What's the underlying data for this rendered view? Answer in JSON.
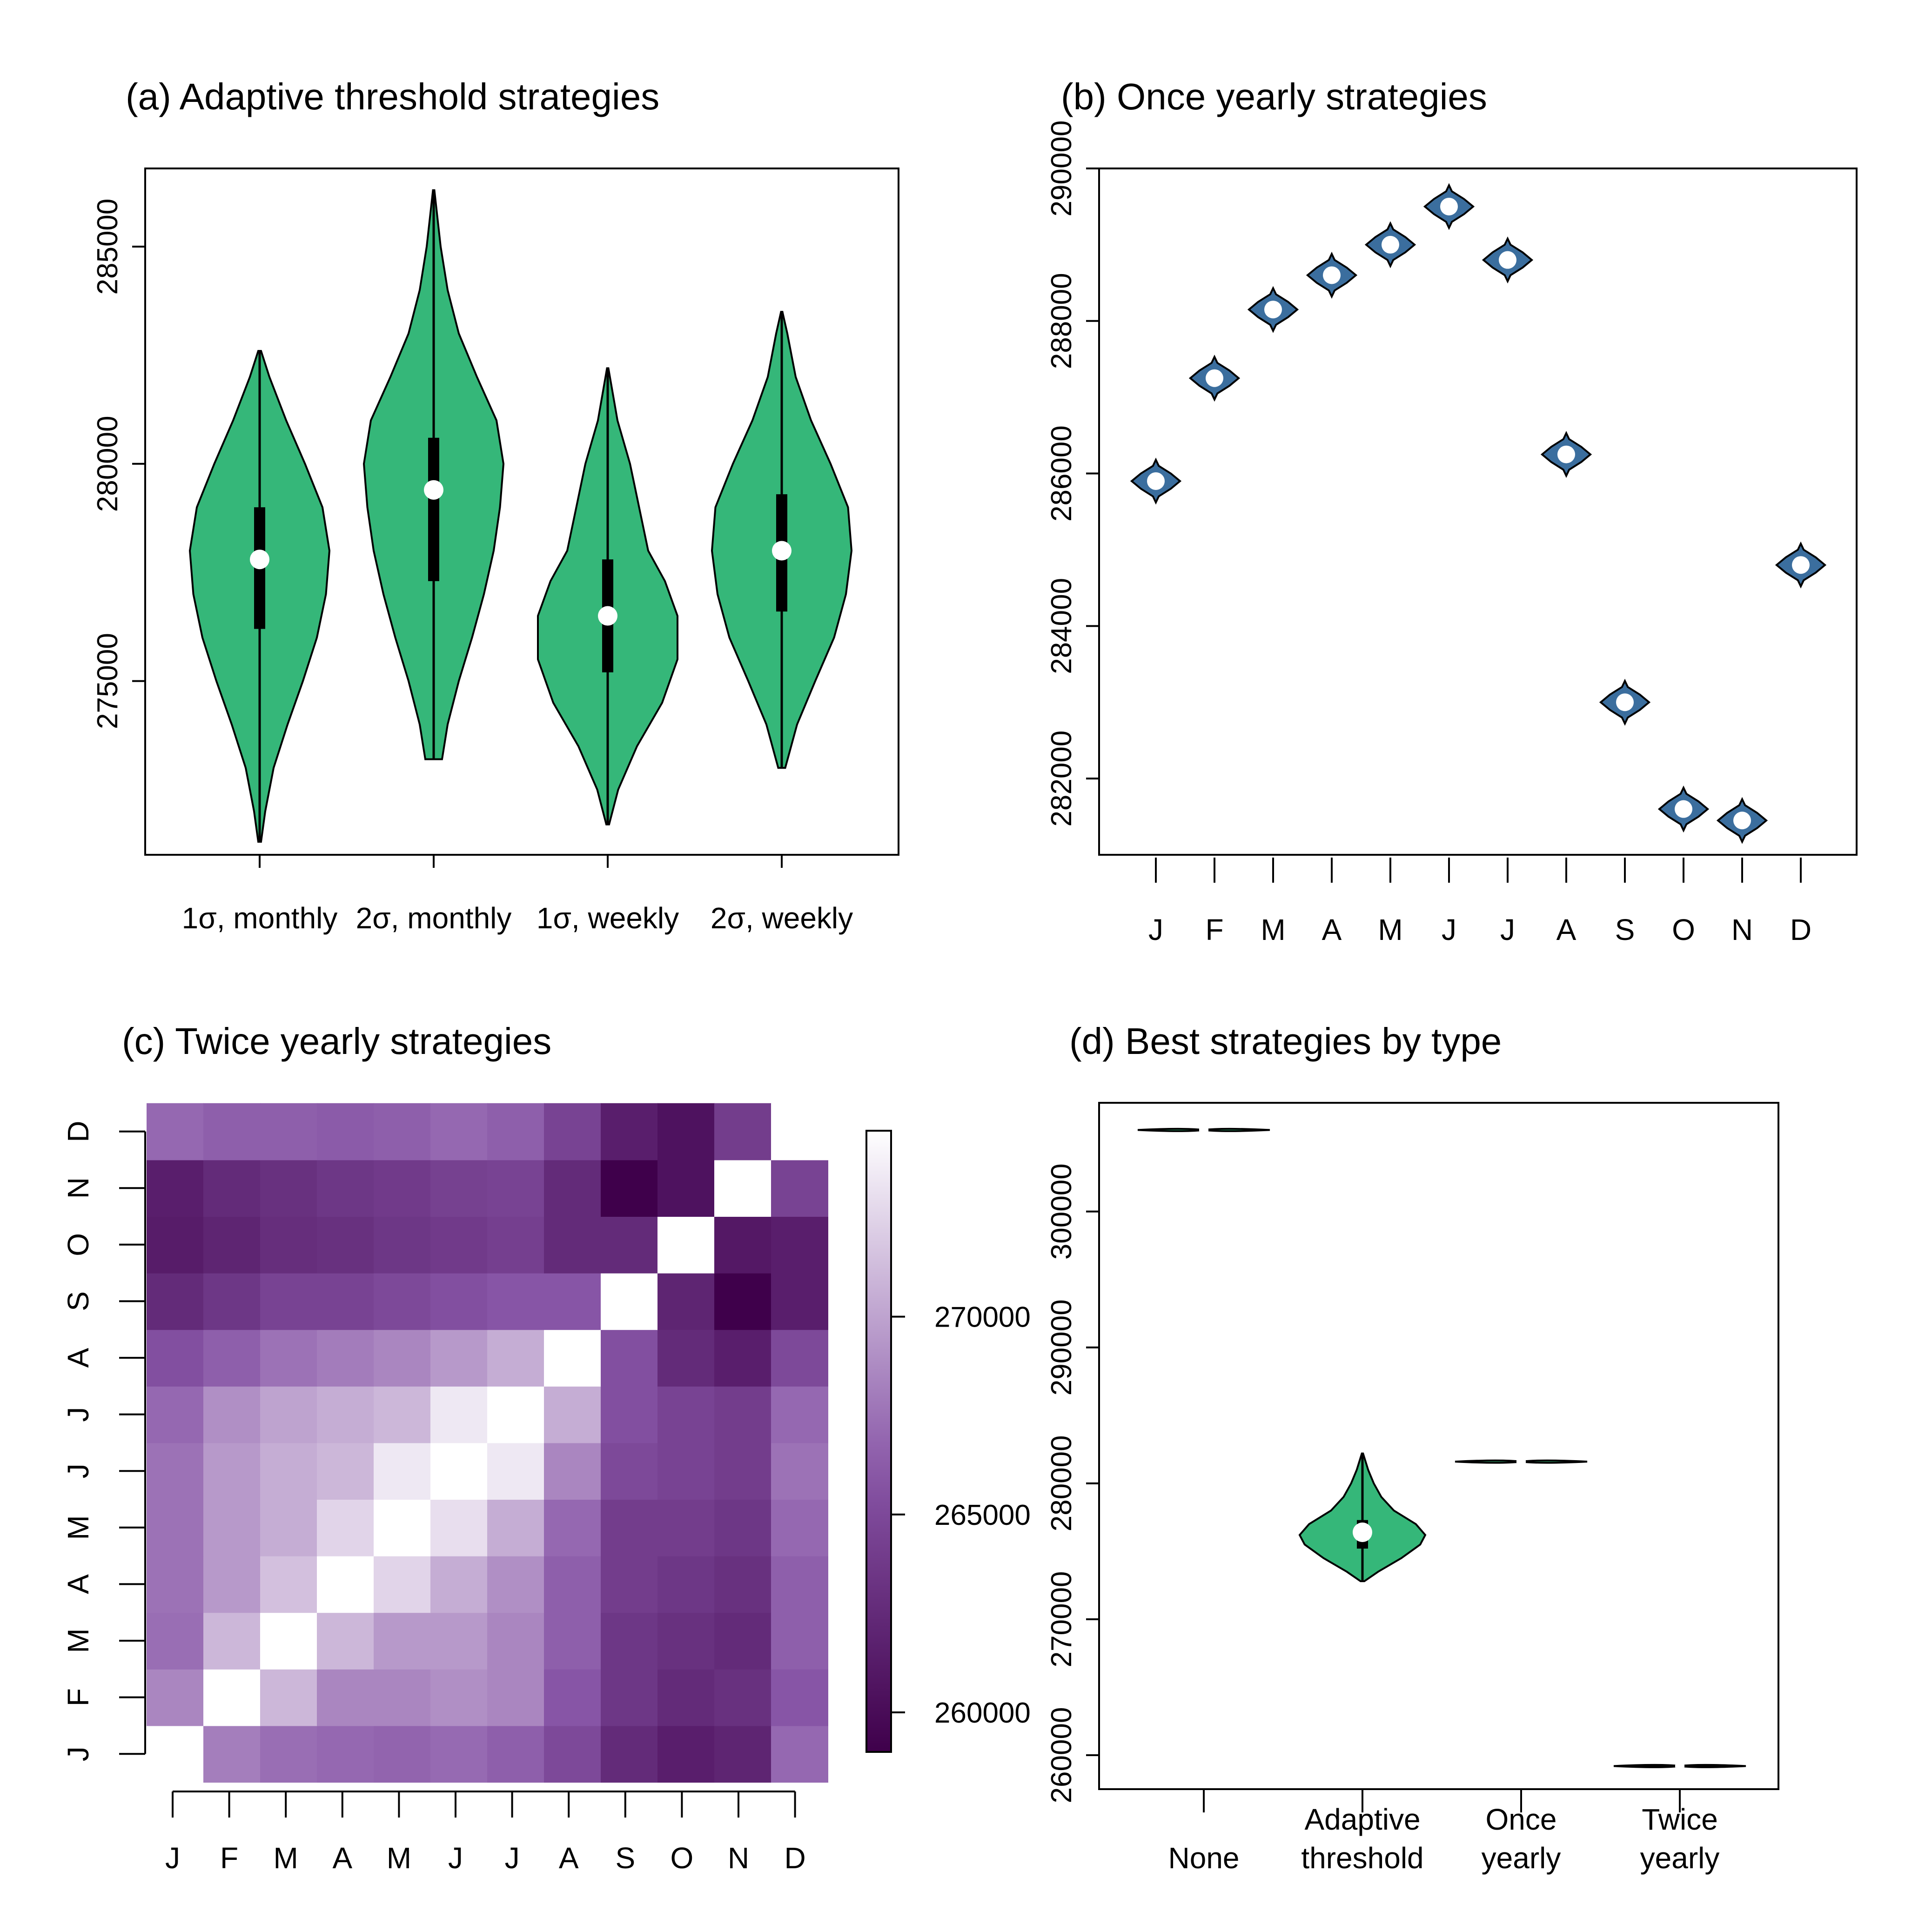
{
  "colors": {
    "violin_green": "#35B779",
    "violin_blue": "#3B6E9E",
    "median_dot": "#FFFFFF",
    "heat_low": "#3F004B",
    "heat_high": "#FFFFFF"
  },
  "chart_data": [
    {
      "id": "a",
      "type": "violin",
      "title": "(a) Adaptive threshold strategies",
      "categories": [
        "1σ, monthly",
        "2σ, monthly",
        "1σ, weekly",
        "2σ, weekly"
      ],
      "ylim": [
        271000,
        286800
      ],
      "yticks": [
        275000,
        280000,
        285000
      ],
      "ytick_labels": [
        "275000",
        "280000",
        "285000"
      ],
      "violins": [
        {
          "min": 271300,
          "q1": 276200,
          "median": 277800,
          "q3": 279000,
          "max": 282600,
          "profile": [
            [
              271300,
              0.02
            ],
            [
              272000,
              0.08
            ],
            [
              273000,
              0.2
            ],
            [
              274000,
              0.4
            ],
            [
              275000,
              0.62
            ],
            [
              276000,
              0.82
            ],
            [
              277000,
              0.95
            ],
            [
              278000,
              1.0
            ],
            [
              279000,
              0.9
            ],
            [
              280000,
              0.65
            ],
            [
              281000,
              0.38
            ],
            [
              282000,
              0.14
            ],
            [
              282600,
              0.02
            ]
          ]
        },
        {
          "min": 273200,
          "q1": 277300,
          "median": 279400,
          "q3": 280600,
          "max": 286300,
          "profile": [
            [
              273200,
              0.12
            ],
            [
              274000,
              0.2
            ],
            [
              275000,
              0.36
            ],
            [
              276000,
              0.55
            ],
            [
              277000,
              0.72
            ],
            [
              278000,
              0.86
            ],
            [
              279000,
              0.95
            ],
            [
              280000,
              1.0
            ],
            [
              281000,
              0.9
            ],
            [
              282000,
              0.62
            ],
            [
              283000,
              0.36
            ],
            [
              284000,
              0.2
            ],
            [
              285000,
              0.1
            ],
            [
              286300,
              0.01
            ]
          ]
        },
        {
          "min": 271700,
          "q1": 275200,
          "median": 276500,
          "q3": 277800,
          "max": 282200,
          "profile": [
            [
              271700,
              0.02
            ],
            [
              272500,
              0.15
            ],
            [
              273500,
              0.42
            ],
            [
              274500,
              0.78
            ],
            [
              275500,
              1.0
            ],
            [
              276500,
              1.0
            ],
            [
              277300,
              0.82
            ],
            [
              278000,
              0.58
            ],
            [
              279000,
              0.45
            ],
            [
              280000,
              0.32
            ],
            [
              281000,
              0.14
            ],
            [
              282200,
              0.01
            ]
          ]
        },
        {
          "min": 273000,
          "q1": 276600,
          "median": 278000,
          "q3": 279300,
          "max": 283500,
          "profile": [
            [
              273000,
              0.05
            ],
            [
              274000,
              0.22
            ],
            [
              275000,
              0.48
            ],
            [
              276000,
              0.75
            ],
            [
              277000,
              0.92
            ],
            [
              278000,
              1.0
            ],
            [
              279000,
              0.95
            ],
            [
              280000,
              0.7
            ],
            [
              281000,
              0.42
            ],
            [
              282000,
              0.2
            ],
            [
              283000,
              0.08
            ],
            [
              283500,
              0.01
            ]
          ]
        }
      ]
    },
    {
      "id": "b",
      "type": "violin",
      "title": "(b) Once yearly strategies",
      "categories": [
        "J",
        "F",
        "M",
        "A",
        "M",
        "J",
        "J",
        "A",
        "S",
        "O",
        "N",
        "D"
      ],
      "ylim": [
        281000,
        290000
      ],
      "yticks": [
        282000,
        284000,
        286000,
        288000,
        290000
      ],
      "ytick_labels": [
        "282000",
        "284000",
        "286000",
        "288000",
        "290000"
      ],
      "medians": [
        285900,
        287250,
        288150,
        288600,
        289000,
        289500,
        288800,
        286250,
        283000,
        281600,
        281450,
        284800
      ]
    },
    {
      "id": "c",
      "type": "heatmap",
      "title": "(c) Twice yearly strategies",
      "x_labels": [
        "J",
        "F",
        "M",
        "A",
        "M",
        "J",
        "J",
        "A",
        "S",
        "O",
        "N",
        "D"
      ],
      "y_labels": [
        "J",
        "F",
        "M",
        "A",
        "M",
        "J",
        "J",
        "A",
        "S",
        "O",
        "N",
        "D"
      ],
      "zlim": [
        259000,
        274700
      ],
      "colorbar_ticks": [
        260000,
        265000,
        270000
      ],
      "colorbar_labels": [
        "260000",
        "265000",
        "270000"
      ],
      "rows_bottom_to_top": [
        [
          null,
          268100,
          267300,
          267000,
          266800,
          267100,
          266500,
          265000,
          262500,
          261500,
          262000,
          267000
        ],
        [
          268500,
          null,
          271000,
          268500,
          268500,
          269000,
          268500,
          266000,
          263500,
          262500,
          263000,
          266000
        ],
        [
          267300,
          271000,
          null,
          271000,
          269500,
          269500,
          268500,
          266500,
          263500,
          263000,
          262500,
          266500
        ],
        [
          267500,
          269500,
          271500,
          null,
          272500,
          270500,
          269000,
          266500,
          264000,
          263500,
          263000,
          266500
        ],
        [
          267500,
          269500,
          270500,
          272500,
          null,
          273000,
          270500,
          267000,
          264000,
          264000,
          263500,
          267000
        ],
        [
          267500,
          269500,
          270500,
          271000,
          273500,
          null,
          273500,
          268500,
          265000,
          264500,
          264000,
          267500
        ],
        [
          267000,
          269000,
          270000,
          270500,
          271000,
          273500,
          null,
          270500,
          265500,
          264500,
          264000,
          267000
        ],
        [
          265500,
          266500,
          267500,
          268000,
          268500,
          269500,
          270500,
          null,
          265500,
          262500,
          261500,
          265000
        ],
        [
          262500,
          263500,
          264500,
          264500,
          265000,
          265500,
          266000,
          266000,
          null,
          262000,
          259000,
          261500
        ],
        [
          261300,
          262000,
          262800,
          263000,
          263500,
          263800,
          264200,
          262500,
          262500,
          null,
          261000,
          261500
        ],
        [
          261500,
          262500,
          263000,
          263500,
          263800,
          264300,
          264500,
          262500,
          259000,
          260500,
          null,
          264500
        ],
        [
          267000,
          266500,
          266500,
          266300,
          266500,
          267000,
          266500,
          264500,
          261500,
          260500,
          264000,
          null
        ]
      ]
    },
    {
      "id": "d",
      "type": "violin",
      "title": "(d) Best strategies by type",
      "categories": [
        "None",
        "Adaptive threshold",
        "Once yearly",
        "Twice yearly"
      ],
      "category_lines": [
        [
          "None"
        ],
        [
          "Adaptive",
          "threshold"
        ],
        [
          "Once",
          "yearly"
        ],
        [
          "Twice",
          "yearly"
        ]
      ],
      "ylim": [
        257500,
        308000
      ],
      "yticks": [
        260000,
        270000,
        280000,
        290000,
        300000
      ],
      "ytick_labels": [
        "260000",
        "270000",
        "280000",
        "290000",
        "300000"
      ],
      "values": [
        306000,
        276400,
        281600,
        259200
      ],
      "violin_adaptive": {
        "min": 272800,
        "q1": 275200,
        "median": 276400,
        "q3": 277300,
        "max": 282200,
        "profile": [
          [
            272800,
            0.03
          ],
          [
            273500,
            0.25
          ],
          [
            274500,
            0.62
          ],
          [
            275500,
            0.92
          ],
          [
            276200,
            1.0
          ],
          [
            277000,
            0.85
          ],
          [
            278000,
            0.5
          ],
          [
            279000,
            0.3
          ],
          [
            280000,
            0.18
          ],
          [
            281000,
            0.09
          ],
          [
            282200,
            0.01
          ]
        ]
      }
    }
  ]
}
